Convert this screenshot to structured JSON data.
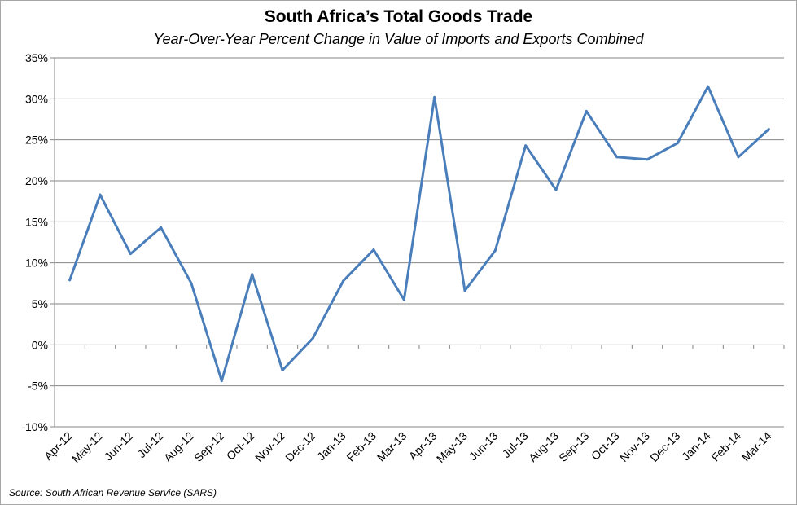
{
  "chart_data": {
    "type": "line",
    "title": "South Africa’s Total Goods Trade",
    "subtitle": "Year-Over-Year Percent Change in Value of Imports and Exports Combined",
    "xlabel": "",
    "ylabel": "",
    "categories": [
      "Apr-12",
      "May-12",
      "Jun-12",
      "Jul-12",
      "Aug-12",
      "Sep-12",
      "Oct-12",
      "Nov-12",
      "Dec-12",
      "Jan-13",
      "Feb-13",
      "Mar-13",
      "Apr-13",
      "May-13",
      "Jun-13",
      "Jul-13",
      "Aug-13",
      "Sep-13",
      "Oct-13",
      "Nov-13",
      "Dec-13",
      "Jan-14",
      "Feb-14",
      "Mar-14"
    ],
    "series": [
      {
        "values": [
          7.9,
          18.3,
          11.1,
          14.3,
          7.5,
          -4.4,
          8.6,
          -3.1,
          0.8,
          7.8,
          11.6,
          5.5,
          30.2,
          6.6,
          11.5,
          24.3,
          18.9,
          28.5,
          22.9,
          22.6,
          24.6,
          31.5,
          22.9,
          26.3
        ],
        "color": "#4a7ebb"
      }
    ],
    "ylim": [
      -10,
      35
    ],
    "yticks": [
      -10,
      -5,
      0,
      5,
      10,
      15,
      20,
      25,
      30,
      35
    ],
    "ytick_format": "percent",
    "grid": true,
    "legend": "none"
  },
  "footer": {
    "source": "Source: South African Revenue Service (SARS)"
  }
}
